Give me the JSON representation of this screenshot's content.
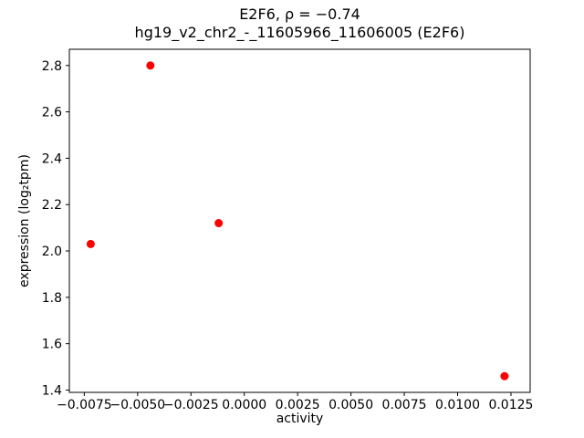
{
  "figure": {
    "title_line1": "E2F6, ρ = −0.74",
    "title_line2": "hg19_v2_chr2_-_11605966_11606005 (E2F6)",
    "xlabel": "activity",
    "ylabel": "expression (log₂tpm)"
  },
  "chart_data": {
    "type": "scatter",
    "title": "E2F6, ρ = −0.74\nhg19_v2_chr2_-_11605966_11606005 (E2F6)",
    "xlabel": "activity",
    "ylabel": "expression (log2 tpm)",
    "correlation_rho": -0.74,
    "marker_color": "#ff0000",
    "axes_color": "#000000",
    "background_color": "#ffffff",
    "legend": "none",
    "grid": false,
    "points": [
      {
        "x": -0.0072,
        "y": 2.03
      },
      {
        "x": -0.0044,
        "y": 2.8
      },
      {
        "x": -0.0012,
        "y": 2.12
      },
      {
        "x": 0.0122,
        "y": 1.46
      }
    ],
    "xlim": [
      -0.0082,
      0.0134
    ],
    "ylim": [
      1.39,
      2.87
    ],
    "xticks": [
      {
        "value": -0.0075,
        "label": "−0.0075"
      },
      {
        "value": -0.005,
        "label": "−0.0050"
      },
      {
        "value": -0.0025,
        "label": "−0.0025"
      },
      {
        "value": 0.0,
        "label": "0.0000"
      },
      {
        "value": 0.0025,
        "label": "0.0025"
      },
      {
        "value": 0.005,
        "label": "0.0050"
      },
      {
        "value": 0.0075,
        "label": "0.0075"
      },
      {
        "value": 0.01,
        "label": "0.0100"
      },
      {
        "value": 0.0125,
        "label": "0.0125"
      }
    ],
    "yticks": [
      {
        "value": 1.4,
        "label": "1.4"
      },
      {
        "value": 1.6,
        "label": "1.6"
      },
      {
        "value": 1.8,
        "label": "1.8"
      },
      {
        "value": 2.0,
        "label": "2.0"
      },
      {
        "value": 2.2,
        "label": "2.2"
      },
      {
        "value": 2.4,
        "label": "2.4"
      },
      {
        "value": 2.6,
        "label": "2.6"
      },
      {
        "value": 2.8,
        "label": "2.8"
      }
    ]
  }
}
